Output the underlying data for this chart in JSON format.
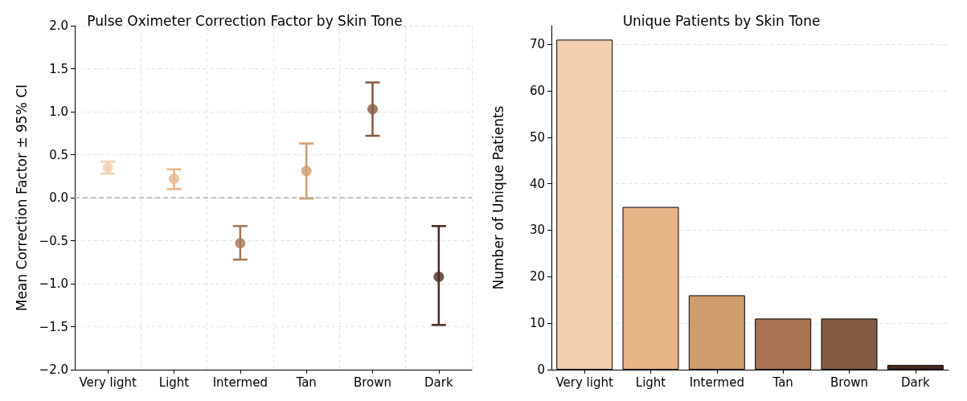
{
  "chart_data": [
    {
      "type": "scatter",
      "title": "Pulse Oximeter Correction Factor by Skin Tone",
      "ylabel": "Mean Correction Factor ± 95% CI",
      "categories": [
        "Very light",
        "Light",
        "Intermed",
        "Tan",
        "Brown",
        "Dark"
      ],
      "values": [
        0.35,
        0.22,
        -0.53,
        0.31,
        1.03,
        -0.92
      ],
      "errors": [
        [
          0.28,
          0.42
        ],
        [
          0.1,
          0.33
        ],
        [
          -0.72,
          -0.33
        ],
        [
          -0.01,
          0.63
        ],
        [
          0.72,
          1.34
        ],
        [
          -1.48,
          -0.33
        ]
      ],
      "colors": [
        "#f2cfae",
        "#e6b586",
        "#a87453",
        "#d19c6c",
        "#835b42",
        "#4a2b1e"
      ],
      "marker": "circle",
      "ylim": [
        -2,
        2
      ],
      "yticks": [
        {
          "value": -2,
          "label": "−2.0"
        },
        {
          "value": -1.5,
          "label": "−1.5"
        },
        {
          "value": -1,
          "label": "−1.0"
        },
        {
          "value": -0.5,
          "label": "−0.5"
        },
        {
          "value": 0,
          "label": "0.0"
        },
        {
          "value": 0.5,
          "label": "0.5"
        },
        {
          "value": 1,
          "label": "1.0"
        },
        {
          "value": 1.5,
          "label": "1.5"
        },
        {
          "value": 2,
          "label": "2.0"
        }
      ],
      "ref_lines": [
        {
          "axis": "y",
          "value": 0,
          "color": "#b0b0b0",
          "line_style": "dashed"
        }
      ],
      "grid": true
    },
    {
      "type": "bar",
      "title": "Unique Patients by Skin Tone",
      "ylabel": "Number of Unique Patients",
      "categories": [
        "Very light",
        "Light",
        "Intermed",
        "Tan",
        "Brown",
        "Dark"
      ],
      "values": [
        71,
        35,
        16,
        11,
        11,
        1
      ],
      "colors": [
        "#f2cfae",
        "#e6b586",
        "#d19c6c",
        "#a87453",
        "#835b42",
        "#4a2b1e"
      ],
      "ylim": [
        0,
        74
      ],
      "yticks": [
        0,
        10,
        20,
        30,
        40,
        50,
        60,
        70
      ],
      "grid": "y"
    }
  ]
}
